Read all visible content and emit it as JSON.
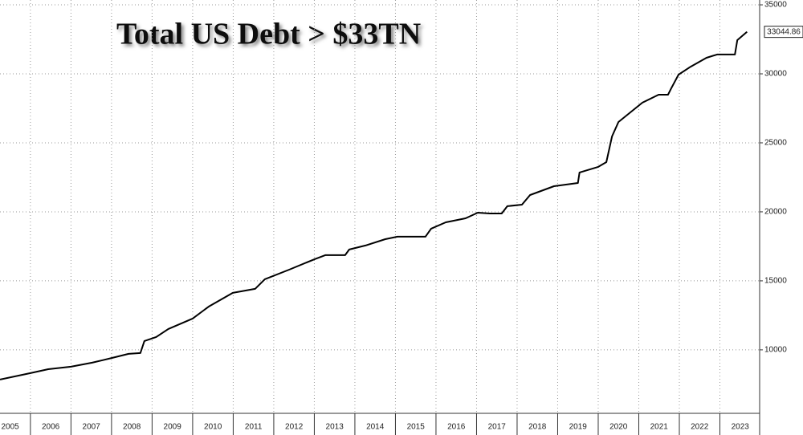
{
  "chart_data": {
    "type": "line",
    "title": "Total US Debt > $33TN",
    "x": [
      2005.25,
      2006.0,
      2006.44,
      2007.0,
      2007.52,
      2008.02,
      2008.42,
      2008.71,
      2008.81,
      2009.1,
      2009.4,
      2010.0,
      2010.4,
      2010.99,
      2011.54,
      2011.78,
      2012.38,
      2013.01,
      2013.27,
      2013.76,
      2013.86,
      2014.26,
      2014.75,
      2015.05,
      2015.74,
      2015.88,
      2016.24,
      2016.73,
      2017.03,
      2017.33,
      2017.62,
      2017.76,
      2018.12,
      2018.32,
      2018.91,
      2019.5,
      2019.54,
      2020.0,
      2020.2,
      2020.34,
      2020.5,
      2021.09,
      2021.49,
      2021.72,
      2021.8,
      2021.98,
      2022.28,
      2022.67,
      2022.93,
      2023.37,
      2023.43,
      2023.67
    ],
    "values": [
      7849,
      8314,
      8600,
      8780,
      9070,
      9420,
      9710,
      9770,
      10640,
      10930,
      11510,
      12270,
      13140,
      14130,
      14420,
      15120,
      15810,
      16570,
      16860,
      16860,
      17270,
      17560,
      18020,
      18200,
      18200,
      18780,
      19240,
      19530,
      19940,
      19880,
      19880,
      20410,
      20520,
      21220,
      21860,
      22090,
      22850,
      23260,
      23600,
      25470,
      26510,
      27910,
      28490,
      28490,
      28950,
      29940,
      30520,
      31160,
      31400,
      31400,
      32440,
      33044.86
    ],
    "color": "#000000",
    "xlim": [
      2005.25,
      2023.98
    ],
    "xticks": [
      2005,
      2006,
      2007,
      2008,
      2009,
      2010,
      2011,
      2012,
      2013,
      2014,
      2015,
      2016,
      2017,
      2018,
      2019,
      2020,
      2021,
      2022,
      2023
    ],
    "ylim": [
      5400,
      35350
    ],
    "yticks": [
      10000,
      15000,
      20000,
      25000,
      30000,
      35000
    ],
    "grid": true
  }
}
